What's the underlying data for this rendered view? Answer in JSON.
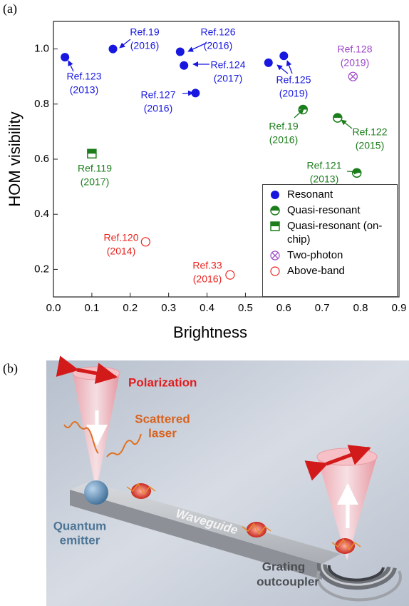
{
  "chart_data": {
    "type": "scatter",
    "panel_label": "(a)",
    "xlabel": "Brightness",
    "ylabel": "HOM visibility",
    "xlim": [
      0,
      0.9
    ],
    "ylim": [
      0.1,
      1.1
    ],
    "xticks": [
      {
        "value": 0,
        "label": "0.0"
      },
      0.1,
      0.2,
      0.3,
      0.4,
      0.5,
      0.6,
      0.7,
      0.8,
      0.9
    ],
    "yticks": [
      0.2,
      0.4,
      0.6,
      0.8,
      {
        "value": 1,
        "label": "1.0"
      }
    ],
    "legend": "lower right",
    "series": [
      {
        "name": "Resonant",
        "color": "#1717e0",
        "marker": "filled",
        "x": [
          0.03,
          0.155,
          0.33,
          0.34,
          0.37,
          0.56,
          0.6
        ],
        "values": [
          0.97,
          1.0,
          0.99,
          0.94,
          0.84,
          0.95,
          0.975
        ]
      },
      {
        "name": "Quasi-resonant",
        "color": "#1b7d1b",
        "marker": "half-circle",
        "x": [
          0.65,
          0.74,
          0.79
        ],
        "values": [
          0.78,
          0.75,
          0.55
        ]
      },
      {
        "name": "Quasi-resonant (on-chip)",
        "color": "#1b7d1b",
        "marker": "half-square",
        "x": [
          0.1
        ],
        "values": [
          0.62
        ]
      },
      {
        "name": "Two-photon",
        "color": "#9b44c8",
        "marker": "crossed",
        "x": [
          0.78
        ],
        "values": [
          0.9
        ]
      },
      {
        "name": "Above-band",
        "color": "#e8231e",
        "marker": "open",
        "x": [
          0.24,
          0.46
        ],
        "values": [
          0.3,
          0.18
        ]
      }
    ],
    "annotations": [
      {
        "lines": [
          "Ref.123",
          "(2013)"
        ],
        "color": "#1717e0"
      },
      {
        "lines": [
          "Ref.19",
          "(2016)"
        ],
        "color": "#1717e0"
      },
      {
        "lines": [
          "Ref.126",
          "(2016)"
        ],
        "color": "#1717e0"
      },
      {
        "lines": [
          "Ref.124",
          "(2017)"
        ],
        "color": "#1717e0"
      },
      {
        "lines": [
          "Ref.127",
          "(2016)"
        ],
        "color": "#1717e0"
      },
      {
        "lines": [
          "Ref.125",
          "(2019)"
        ],
        "color": "#1717e0"
      },
      {
        "lines": [
          "Ref.128",
          "(2019)"
        ],
        "color": "#9b44c8"
      },
      {
        "lines": [
          "Ref.19",
          "(2016)"
        ],
        "color": "#1b7d1b"
      },
      {
        "lines": [
          "Ref.122",
          "(2015)"
        ],
        "color": "#1b7d1b"
      },
      {
        "lines": [
          "Ref.121",
          "(2013)"
        ],
        "color": "#1b7d1b"
      },
      {
        "lines": [
          "Ref.119",
          "(2017)"
        ],
        "color": "#1b7d1b"
      },
      {
        "lines": [
          "Ref.120",
          "(2014)"
        ],
        "color": "#e8231e"
      },
      {
        "lines": [
          "Ref.33",
          "(2016)"
        ],
        "color": "#e8231e"
      }
    ]
  },
  "diagram": {
    "label": "(b)",
    "polarization": "Polarization",
    "scattered_laser": [
      "Scattered",
      "laser"
    ],
    "quantum_emitter": [
      "Quantum",
      "emitter"
    ],
    "waveguide": "Waveguide",
    "grating_outcoupler": [
      "Grating",
      "outcoupler"
    ]
  }
}
